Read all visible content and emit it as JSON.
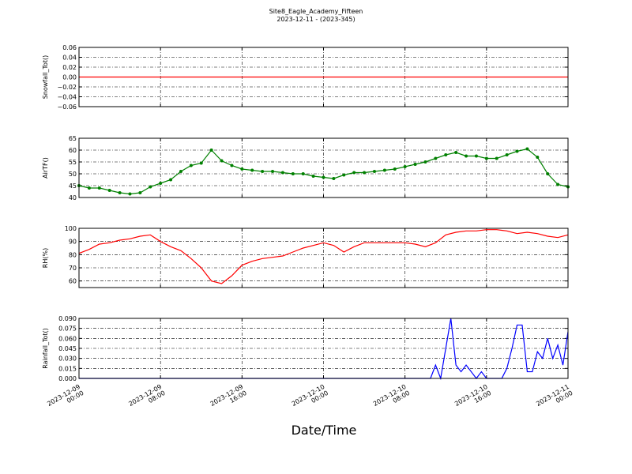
{
  "title": "Site8_Eagle_Academy_Fifteen",
  "subtitle": "2023-12-11 - (2023-345)",
  "xlabel": "Date/Time",
  "chart_data": [
    {
      "type": "line",
      "ylabel": "Snowfall_Tot()",
      "color": "#ff0000",
      "marker": false,
      "grid": true,
      "x": [
        "2023-12-09 00:00",
        "2023-12-11 00:00"
      ],
      "values": [
        0,
        0
      ],
      "xlim": [
        "2023-12-09 00:00",
        "2023-12-11 00:00"
      ],
      "xticks": [
        "2023-12-09 00:00",
        "2023-12-09 08:00",
        "2023-12-09 16:00",
        "2023-12-10 00:00",
        "2023-12-10 08:00",
        "2023-12-10 16:00",
        "2023-12-11 00:00"
      ],
      "ylim": [
        -0.06,
        0.06
      ],
      "yticks": [
        {
          "value": -0.06,
          "label": "−0.06"
        },
        {
          "value": -0.04,
          "label": "−0.04"
        },
        {
          "value": -0.02,
          "label": "−0.02"
        },
        {
          "value": 0,
          "label": "0.00"
        },
        {
          "value": 0.02,
          "label": "0.02"
        },
        {
          "value": 0.04,
          "label": "0.04"
        },
        {
          "value": 0.06,
          "label": "0.06"
        }
      ]
    },
    {
      "type": "line",
      "ylabel": "AirTF()",
      "color": "#008000",
      "marker": true,
      "grid": true,
      "x": [
        "2023-12-09 00:00",
        "2023-12-09 01:00",
        "2023-12-09 02:00",
        "2023-12-09 03:00",
        "2023-12-09 04:00",
        "2023-12-09 05:00",
        "2023-12-09 06:00",
        "2023-12-09 07:00",
        "2023-12-09 08:00",
        "2023-12-09 09:00",
        "2023-12-09 10:00",
        "2023-12-09 11:00",
        "2023-12-09 12:00",
        "2023-12-09 13:00",
        "2023-12-09 14:00",
        "2023-12-09 15:00",
        "2023-12-09 16:00",
        "2023-12-09 17:00",
        "2023-12-09 18:00",
        "2023-12-09 19:00",
        "2023-12-09 20:00",
        "2023-12-09 21:00",
        "2023-12-09 22:00",
        "2023-12-09 23:00",
        "2023-12-10 00:00",
        "2023-12-10 01:00",
        "2023-12-10 02:00",
        "2023-12-10 03:00",
        "2023-12-10 04:00",
        "2023-12-10 05:00",
        "2023-12-10 06:00",
        "2023-12-10 07:00",
        "2023-12-10 08:00",
        "2023-12-10 09:00",
        "2023-12-10 10:00",
        "2023-12-10 11:00",
        "2023-12-10 12:00",
        "2023-12-10 13:00",
        "2023-12-10 14:00",
        "2023-12-10 15:00",
        "2023-12-10 16:00",
        "2023-12-10 17:00",
        "2023-12-10 18:00",
        "2023-12-10 19:00",
        "2023-12-10 20:00",
        "2023-12-10 21:00",
        "2023-12-10 22:00",
        "2023-12-10 23:00",
        "2023-12-11 00:00"
      ],
      "values": [
        45,
        44,
        44,
        43,
        42,
        41.5,
        42,
        44.5,
        46,
        47.5,
        51,
        53.5,
        54.5,
        60,
        55.5,
        53.5,
        52,
        51.5,
        51,
        51,
        50.5,
        50,
        50,
        49,
        48.5,
        48,
        49.5,
        50.5,
        50.5,
        51,
        51.5,
        52,
        53,
        54,
        55,
        56.5,
        58,
        59,
        57.5,
        57.5,
        56.5,
        56.5,
        58,
        59.5,
        60.5,
        57,
        50,
        45.5,
        44.5
      ],
      "xlim": [
        "2023-12-09 00:00",
        "2023-12-11 00:00"
      ],
      "xticks": [
        "2023-12-09 00:00",
        "2023-12-09 08:00",
        "2023-12-09 16:00",
        "2023-12-10 00:00",
        "2023-12-10 08:00",
        "2023-12-10 16:00",
        "2023-12-11 00:00"
      ],
      "ylim": [
        40,
        65
      ],
      "yticks": [
        40,
        45,
        50,
        55,
        60,
        65
      ]
    },
    {
      "type": "line",
      "ylabel": "RH(%)",
      "color": "#ff0000",
      "marker": false,
      "grid": true,
      "x": [
        "2023-12-09 00:00",
        "2023-12-09 01:00",
        "2023-12-09 02:00",
        "2023-12-09 03:00",
        "2023-12-09 04:00",
        "2023-12-09 05:00",
        "2023-12-09 06:00",
        "2023-12-09 07:00",
        "2023-12-09 08:00",
        "2023-12-09 09:00",
        "2023-12-09 10:00",
        "2023-12-09 11:00",
        "2023-12-09 12:00",
        "2023-12-09 13:00",
        "2023-12-09 14:00",
        "2023-12-09 15:00",
        "2023-12-09 16:00",
        "2023-12-09 17:00",
        "2023-12-09 18:00",
        "2023-12-09 19:00",
        "2023-12-09 20:00",
        "2023-12-09 21:00",
        "2023-12-09 22:00",
        "2023-12-09 23:00",
        "2023-12-10 00:00",
        "2023-12-10 01:00",
        "2023-12-10 02:00",
        "2023-12-10 03:00",
        "2023-12-10 04:00",
        "2023-12-10 05:00",
        "2023-12-10 06:00",
        "2023-12-10 07:00",
        "2023-12-10 08:00",
        "2023-12-10 09:00",
        "2023-12-10 10:00",
        "2023-12-10 11:00",
        "2023-12-10 12:00",
        "2023-12-10 13:00",
        "2023-12-10 14:00",
        "2023-12-10 15:00",
        "2023-12-10 16:00",
        "2023-12-10 17:00",
        "2023-12-10 18:00",
        "2023-12-10 19:00",
        "2023-12-10 20:00",
        "2023-12-10 21:00",
        "2023-12-10 22:00",
        "2023-12-10 23:00",
        "2023-12-11 00:00"
      ],
      "values": [
        81,
        84,
        88,
        89,
        91,
        92,
        94,
        95,
        90,
        86,
        83,
        77,
        70,
        60,
        58,
        64,
        72,
        75,
        77,
        78,
        79,
        82,
        85,
        87,
        89,
        87,
        82,
        86,
        89,
        89,
        89,
        89,
        89,
        88,
        86,
        89,
        95,
        97,
        98,
        98,
        99,
        99,
        98,
        96,
        97,
        96,
        94,
        93,
        95
      ],
      "xlim": [
        "2023-12-09 00:00",
        "2023-12-11 00:00"
      ],
      "xticks": [
        "2023-12-09 00:00",
        "2023-12-09 08:00",
        "2023-12-09 16:00",
        "2023-12-10 00:00",
        "2023-12-10 08:00",
        "2023-12-10 16:00",
        "2023-12-11 00:00"
      ],
      "ylim": [
        55,
        100
      ],
      "yticks": [
        60,
        70,
        80,
        90,
        100
      ]
    },
    {
      "type": "line",
      "ylabel": "Rainfall_Tot()",
      "color": "#0000ff",
      "marker": false,
      "grid": true,
      "x": [
        "2023-12-09 00:00",
        "2023-12-10 10:30",
        "2023-12-10 11:00",
        "2023-12-10 11:30",
        "2023-12-10 12:30",
        "2023-12-10 13:00",
        "2023-12-10 13:30",
        "2023-12-10 14:00",
        "2023-12-10 14:30",
        "2023-12-10 15:00",
        "2023-12-10 15:30",
        "2023-12-10 16:00",
        "2023-12-10 17:30",
        "2023-12-10 18:00",
        "2023-12-10 18:30",
        "2023-12-10 19:00",
        "2023-12-10 19:30",
        "2023-12-10 20:00",
        "2023-12-10 20:30",
        "2023-12-10 21:00",
        "2023-12-10 21:30",
        "2023-12-10 22:00",
        "2023-12-10 22:30",
        "2023-12-10 23:00",
        "2023-12-10 23:30",
        "2023-12-11 00:00"
      ],
      "values": [
        0,
        0,
        0.02,
        0,
        0.09,
        0.02,
        0.01,
        0.02,
        0.01,
        0,
        0.01,
        0,
        0,
        0.015,
        0.045,
        0.08,
        0.08,
        0.01,
        0.01,
        0.04,
        0.03,
        0.06,
        0.03,
        0.05,
        0.02,
        0.07
      ],
      "xlim": [
        "2023-12-09 00:00",
        "2023-12-11 00:00"
      ],
      "xticks": [
        "2023-12-09 00:00",
        "2023-12-09 08:00",
        "2023-12-09 16:00",
        "2023-12-10 00:00",
        "2023-12-10 08:00",
        "2023-12-10 16:00",
        "2023-12-11 00:00"
      ],
      "ylim": [
        0,
        0.09
      ],
      "yticks": [
        {
          "value": 0,
          "label": "0.000"
        },
        {
          "value": 0.015,
          "label": "0.015"
        },
        {
          "value": 0.03,
          "label": "0.030"
        },
        {
          "value": 0.045,
          "label": "0.045"
        },
        {
          "value": 0.06,
          "label": "0.060"
        },
        {
          "value": 0.075,
          "label": "0.075"
        },
        {
          "value": 0.09,
          "label": "0.090"
        }
      ]
    }
  ]
}
